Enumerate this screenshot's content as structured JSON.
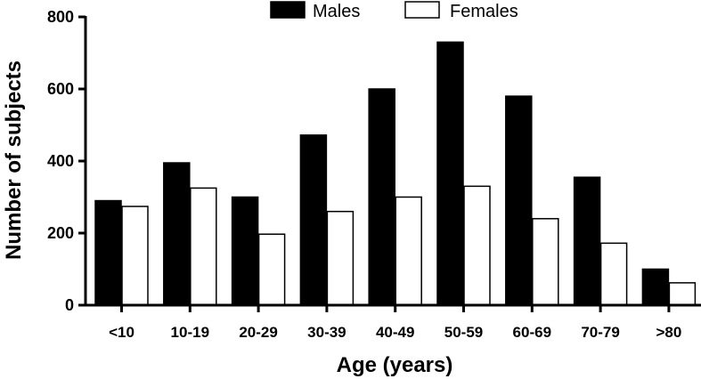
{
  "chart_data": {
    "type": "bar",
    "title": "",
    "xlabel": "Age (years)",
    "ylabel": "Number of subjects",
    "ylim": [
      0,
      800
    ],
    "yticks": [
      0,
      200,
      400,
      600,
      800
    ],
    "categories": [
      "<10",
      "10-19",
      "20-29",
      "30-39",
      "40-49",
      "50-59",
      "60-69",
      "70-79",
      ">80"
    ],
    "series": [
      {
        "name": "Males",
        "color": "#000000",
        "values": [
          290,
          395,
          300,
          472,
          600,
          730,
          580,
          355,
          100
        ]
      },
      {
        "name": "Females",
        "color": "#ffffff",
        "values": [
          274,
          325,
          197,
          260,
          300,
          330,
          240,
          172,
          62
        ]
      }
    ],
    "legend": "top-center",
    "grid": false
  }
}
